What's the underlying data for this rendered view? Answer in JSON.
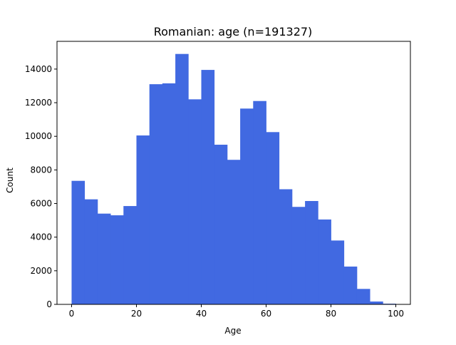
{
  "chart_data": {
    "type": "bar",
    "title": "Romanian: age (n=191327)",
    "xlabel": "Age",
    "ylabel": "Count",
    "bar_color": "#4169e1",
    "bin_edges": [
      0,
      4,
      8,
      12,
      16,
      20,
      24,
      28,
      32,
      36,
      40,
      44,
      48,
      52,
      56,
      60,
      64,
      68,
      72,
      76,
      80,
      84,
      88,
      92,
      96,
      100
    ],
    "values": [
      7350,
      6250,
      5400,
      5300,
      5850,
      10050,
      13100,
      13150,
      14900,
      12200,
      13950,
      9500,
      8600,
      11650,
      12100,
      10250,
      6850,
      5800,
      6150,
      5050,
      3800,
      2250,
      920,
      170,
      40
    ],
    "xlim": [
      -4.5,
      104.5
    ],
    "ylim": [
      0,
      15650
    ],
    "xticks": [
      0,
      20,
      40,
      60,
      80,
      100
    ],
    "xtick_labels": [
      "0",
      "20",
      "40",
      "60",
      "80",
      "100"
    ],
    "yticks": [
      0,
      2000,
      4000,
      6000,
      8000,
      10000,
      12000,
      14000
    ],
    "ytick_labels": [
      "0",
      "2000",
      "4000",
      "6000",
      "8000",
      "10000",
      "12000",
      "14000"
    ],
    "grid": false,
    "legend": false
  }
}
